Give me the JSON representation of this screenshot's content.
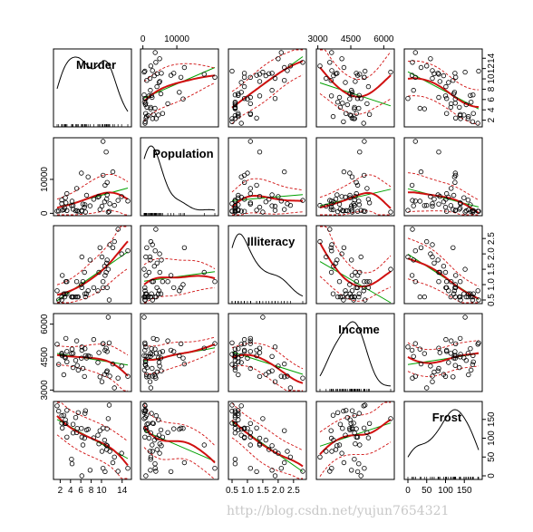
{
  "chart_data": {
    "type": "scatter",
    "kind": "scatterplot matrix",
    "variables": [
      {
        "name": "Murder",
        "range": [
          1.4,
          15.1
        ],
        "ticks": [
          2,
          6,
          10,
          14
        ]
      },
      {
        "name": "Population",
        "range": [
          365,
          21198
        ],
        "ticks": [
          0,
          10000
        ]
      },
      {
        "name": "Illiteracy",
        "range": [
          0.5,
          2.8
        ],
        "ticks": [
          0.5,
          1.5,
          2.5
        ]
      },
      {
        "name": "Income",
        "range": [
          3098,
          6315
        ],
        "ticks": [
          3000,
          4500,
          6000
        ]
      },
      {
        "name": "Frost",
        "range": [
          0,
          188
        ],
        "ticks": [
          0,
          50,
          100,
          150
        ]
      }
    ],
    "bottom_axis_ticks": {
      "Murder": [
        "2",
        "4",
        "6",
        "8",
        "10",
        "14"
      ],
      "Illiteracy": [
        "0.5",
        "1.0",
        "1.5",
        "2.0",
        "2.5"
      ],
      "Frost": [
        "0",
        "50",
        "100",
        "150"
      ]
    },
    "top_axis_ticks": {
      "Population": [
        "0",
        "10000"
      ],
      "Income": [
        "3000",
        "4500",
        "6000"
      ]
    },
    "left_axis_ticks": {
      "Population": [
        "0",
        "10000"
      ],
      "Income": [
        "3000",
        "4500",
        "6000"
      ]
    },
    "right_axis_ticks": {
      "Murder": [
        "2",
        "4",
        "6",
        "8",
        "10",
        "12",
        "14"
      ],
      "Illiteracy": [
        "0.5",
        "1.0",
        "1.5",
        "2.0",
        "2.5"
      ],
      "Frost": [
        "0",
        "50",
        "100",
        "150"
      ]
    },
    "observations": {
      "Murder": [
        15.1,
        11.3,
        7.8,
        10.1,
        10.3,
        6.8,
        3.1,
        6.2,
        10.7,
        13.9,
        6.2,
        5.3,
        10.3,
        7.1,
        2.3,
        4.5,
        10.6,
        13.2,
        2.7,
        8.5,
        3.3,
        11.1,
        2.3,
        12.5,
        9.3,
        5.0,
        2.9,
        11.5,
        3.3,
        5.2,
        9.7,
        10.9,
        11.1,
        1.4,
        7.4,
        6.4,
        4.2,
        6.1,
        2.4,
        11.6,
        1.7,
        11.0,
        12.2,
        4.5,
        5.5,
        9.5,
        4.3,
        6.7,
        3.0,
        6.9
      ],
      "Population": [
        3615,
        365,
        2212,
        2110,
        21198,
        2541,
        3100,
        579,
        8277,
        4931,
        868,
        813,
        11197,
        5313,
        2861,
        2280,
        3387,
        3806,
        1058,
        4122,
        5814,
        9111,
        3921,
        2341,
        4767,
        746,
        1544,
        590,
        812,
        7333,
        1144,
        18076,
        5441,
        637,
        10735,
        2715,
        2284,
        11860,
        931,
        2816,
        681,
        4173,
        12237,
        1203,
        472,
        4981,
        3559,
        1799,
        4589,
        376
      ],
      "Illiteracy": [
        2.1,
        1.5,
        1.8,
        1.9,
        1.1,
        0.7,
        1.1,
        0.9,
        1.3,
        2.0,
        1.9,
        0.6,
        0.9,
        0.7,
        0.5,
        0.6,
        1.6,
        2.8,
        0.7,
        0.9,
        1.1,
        0.9,
        0.6,
        2.4,
        0.8,
        0.6,
        0.6,
        0.5,
        0.7,
        1.1,
        2.2,
        1.4,
        1.8,
        0.8,
        0.8,
        1.1,
        0.6,
        1.0,
        1.3,
        2.3,
        0.5,
        1.7,
        2.2,
        0.6,
        0.6,
        1.4,
        0.6,
        1.4,
        0.7,
        0.6
      ],
      "Income": [
        3624,
        6315,
        4530,
        3378,
        5114,
        4884,
        5348,
        4809,
        4815,
        4091,
        4963,
        4119,
        5107,
        4458,
        4628,
        4669,
        3712,
        3545,
        3694,
        5299,
        4755,
        4751,
        4675,
        3098,
        4254,
        4347,
        4508,
        5149,
        4281,
        5237,
        3601,
        4903,
        3875,
        5087,
        4561,
        3983,
        4660,
        4449,
        4558,
        3635,
        4167,
        3821,
        4188,
        4022,
        3907,
        4701,
        4864,
        3617,
        4468,
        4566
      ],
      "Frost": [
        20,
        152,
        15,
        65,
        20,
        166,
        139,
        103,
        11,
        60,
        0,
        126,
        127,
        122,
        140,
        114,
        95,
        12,
        161,
        101,
        103,
        125,
        160,
        50,
        108,
        155,
        139,
        188,
        174,
        115,
        120,
        82,
        80,
        186,
        124,
        82,
        44,
        126,
        127,
        65,
        172,
        70,
        35,
        137,
        168,
        85,
        32,
        100,
        149,
        173
      ]
    },
    "series": [
      {
        "name": "scatter points",
        "role": "black open circles"
      },
      {
        "name": "linear fit",
        "color": "#00a000",
        "role": "linear fit"
      },
      {
        "name": "smoothed fit",
        "color": "#d01010",
        "role": "smoothed fit"
      },
      {
        "name": "spread band",
        "color": "#d01010",
        "role": "dashed band"
      }
    ],
    "diagonal": "kernel density with rug",
    "grid": false,
    "legend": "none"
  },
  "watermark": "http://blog.csdn.net/yujun7654321",
  "colors": {
    "points": "#000000",
    "linear": "#00a000",
    "smooth": "#d01010",
    "density": "#000000",
    "frame": "#000000"
  }
}
